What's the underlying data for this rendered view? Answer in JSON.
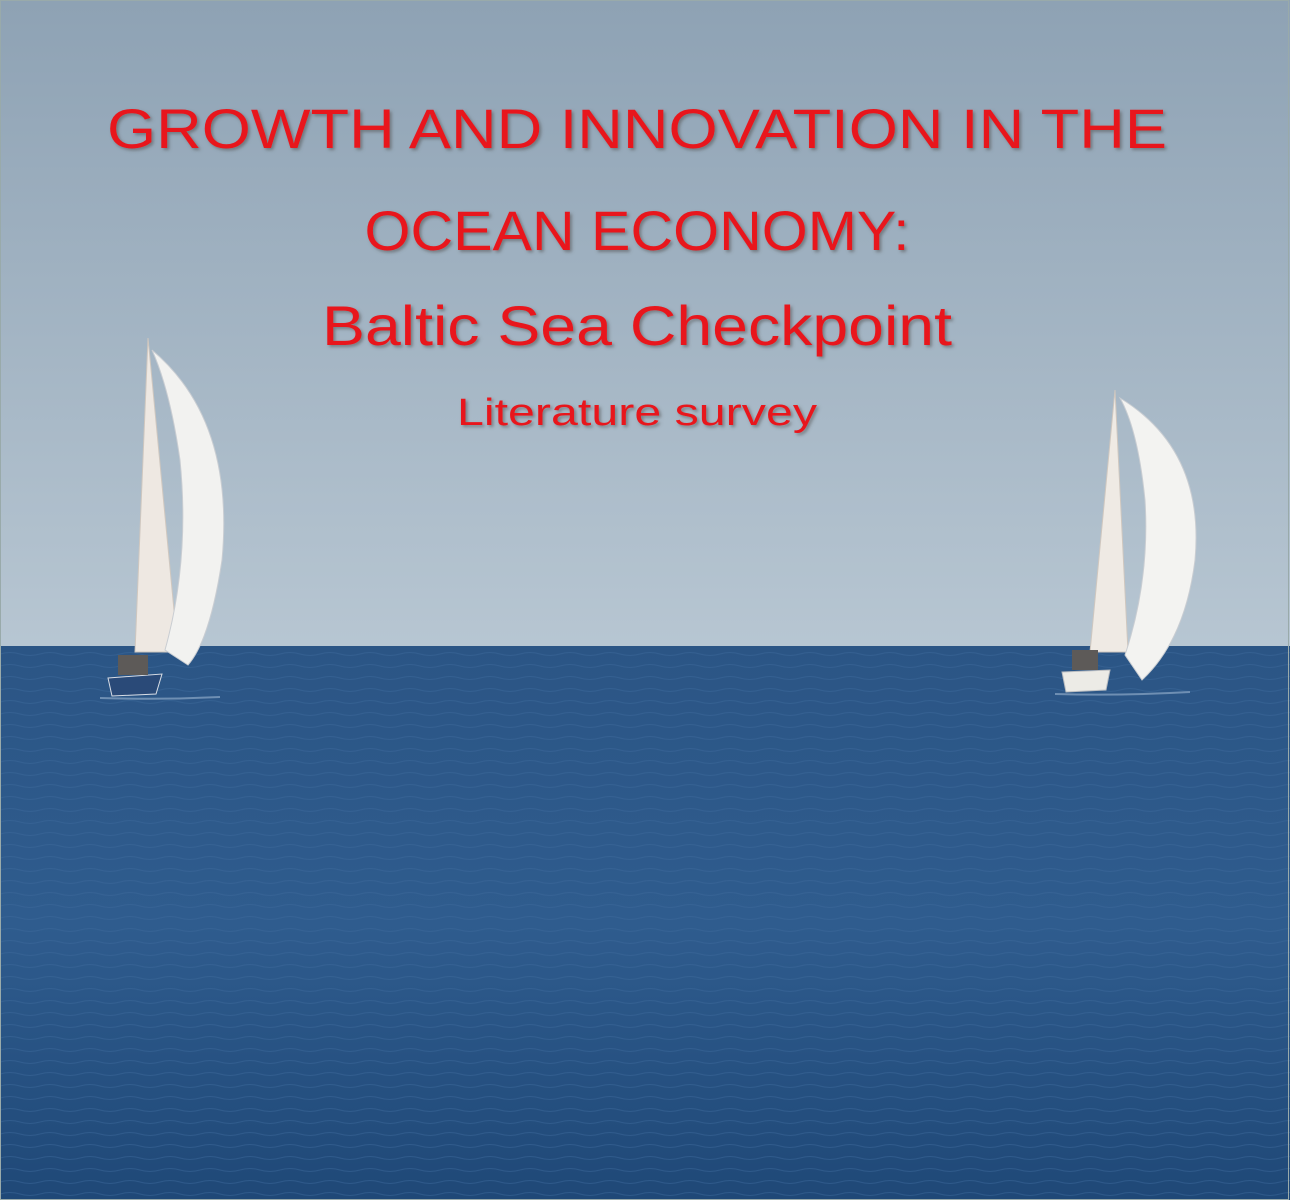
{
  "cover": {
    "title_lines": [
      "GROWTH AND INNOVATION IN THE",
      "OCEAN ECONOMY:"
    ],
    "subtitle": "Baltic Sea Checkpoint",
    "tagline": "Literature survey"
  }
}
